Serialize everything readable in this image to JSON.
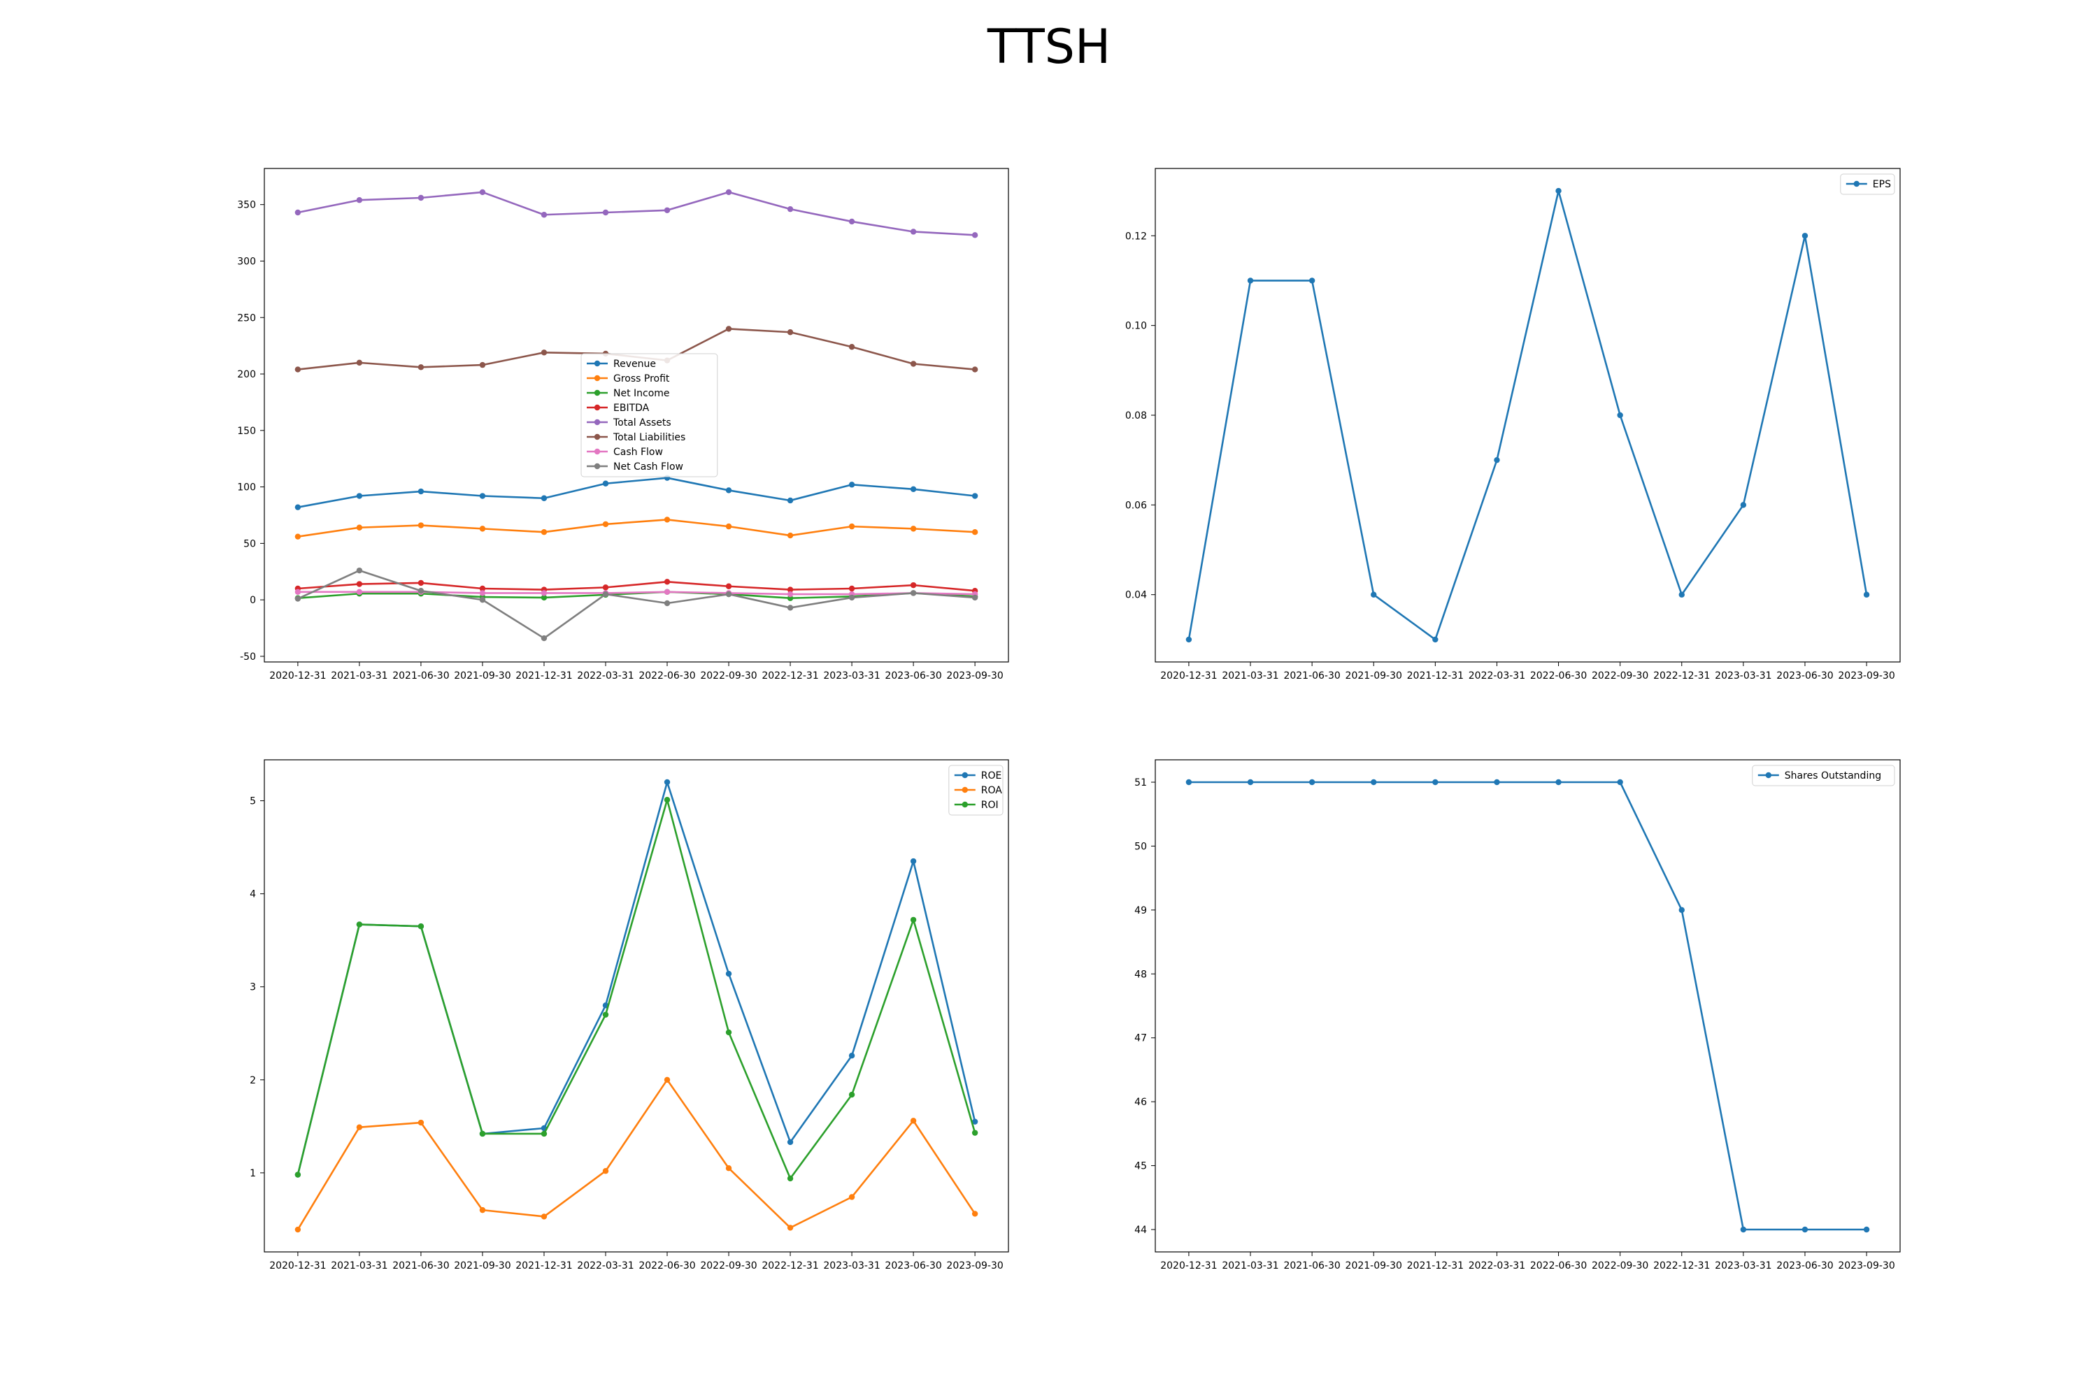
{
  "title": "TTSH",
  "colors": {
    "blue": "#1f77b4",
    "orange": "#ff7f0e",
    "green": "#2ca02c",
    "red": "#d62728",
    "purple": "#9467bd",
    "brown": "#8c564b",
    "pink": "#e377c2",
    "gray": "#7f7f7f"
  },
  "chart_data": [
    {
      "type": "line",
      "categories": [
        "2020-12-31",
        "2021-03-31",
        "2021-06-30",
        "2021-09-30",
        "2021-12-31",
        "2022-03-31",
        "2022-06-30",
        "2022-09-30",
        "2022-12-31",
        "2023-03-31",
        "2023-06-30",
        "2023-09-30"
      ],
      "ylim": [
        -55,
        382
      ],
      "yticks": [
        -50,
        0,
        50,
        100,
        150,
        200,
        250,
        300,
        350
      ],
      "legend": "center",
      "series": [
        {
          "name": "Revenue",
          "color": "#1f77b4",
          "values": [
            82,
            92,
            96,
            92,
            90,
            103,
            108,
            97,
            88,
            102,
            98,
            92
          ]
        },
        {
          "name": "Gross Profit",
          "color": "#ff7f0e",
          "values": [
            56,
            64,
            66,
            63,
            60,
            67,
            71,
            65,
            57,
            65,
            63,
            60
          ]
        },
        {
          "name": "Net Income",
          "color": "#2ca02c",
          "values": [
            1.5,
            5.5,
            5.5,
            2.5,
            2.0,
            4.5,
            7.0,
            5.0,
            1.5,
            3.0,
            6.0,
            3.0
          ]
        },
        {
          "name": "EBITDA",
          "color": "#d62728",
          "values": [
            10,
            14,
            15,
            10,
            9,
            11,
            16,
            12,
            9,
            10,
            13,
            8
          ]
        },
        {
          "name": "Total Assets",
          "color": "#9467bd",
          "values": [
            343,
            354,
            356,
            361,
            341,
            343,
            345,
            361,
            346,
            335,
            326,
            323
          ]
        },
        {
          "name": "Total Liabilities",
          "color": "#8c564b",
          "values": [
            204,
            210,
            206,
            208,
            219,
            218,
            212,
            240,
            237,
            224,
            209,
            204
          ]
        },
        {
          "name": "Cash Flow",
          "color": "#e377c2",
          "values": [
            7,
            7,
            7,
            6,
            6,
            6,
            7,
            6,
            5,
            5,
            6,
            5
          ]
        },
        {
          "name": "Net Cash Flow",
          "color": "#7f7f7f",
          "values": [
            1,
            26,
            8,
            0,
            -34,
            5,
            -3,
            5,
            -7,
            2,
            6,
            2
          ]
        }
      ]
    },
    {
      "type": "line",
      "categories": [
        "2020-12-31",
        "2021-03-31",
        "2021-06-30",
        "2021-09-30",
        "2021-12-31",
        "2022-03-31",
        "2022-06-30",
        "2022-09-30",
        "2022-12-31",
        "2023-03-31",
        "2023-06-30",
        "2023-09-30"
      ],
      "ylim": [
        0.025,
        0.135
      ],
      "yticks": [
        0.04,
        0.06,
        0.08,
        0.1,
        0.12
      ],
      "ytick_labels": [
        "0.04",
        "0.06",
        "0.08",
        "0.10",
        "0.12"
      ],
      "legend": "top-right",
      "series": [
        {
          "name": "EPS",
          "color": "#1f77b4",
          "values": [
            0.03,
            0.11,
            0.11,
            0.04,
            0.03,
            0.07,
            0.13,
            0.08,
            0.04,
            0.06,
            0.12,
            0.04
          ]
        }
      ]
    },
    {
      "type": "line",
      "categories": [
        "2020-12-31",
        "2021-03-31",
        "2021-06-30",
        "2021-09-30",
        "2021-12-31",
        "2022-03-31",
        "2022-06-30",
        "2022-09-30",
        "2022-12-31",
        "2023-03-31",
        "2023-06-30",
        "2023-09-30"
      ],
      "ylim": [
        0.15,
        5.44
      ],
      "yticks": [
        1,
        2,
        3,
        4,
        5
      ],
      "legend": "top-right",
      "series": [
        {
          "name": "ROE",
          "color": "#1f77b4",
          "values": [
            0.98,
            3.67,
            3.65,
            1.42,
            1.48,
            2.8,
            5.2,
            3.14,
            1.33,
            2.26,
            4.35,
            1.55
          ]
        },
        {
          "name": "ROA",
          "color": "#ff7f0e",
          "values": [
            0.39,
            1.49,
            1.54,
            0.6,
            0.53,
            1.02,
            2.0,
            1.05,
            0.41,
            0.74,
            1.56,
            0.56
          ]
        },
        {
          "name": "ROI",
          "color": "#2ca02c",
          "values": [
            0.98,
            3.67,
            3.65,
            1.42,
            1.42,
            2.7,
            5.01,
            2.51,
            0.94,
            1.84,
            3.72,
            1.43
          ]
        }
      ]
    },
    {
      "type": "line",
      "categories": [
        "2020-12-31",
        "2021-03-31",
        "2021-06-30",
        "2021-09-30",
        "2021-12-31",
        "2022-03-31",
        "2022-06-30",
        "2022-09-30",
        "2022-12-31",
        "2023-03-31",
        "2023-06-30",
        "2023-09-30"
      ],
      "ylim": [
        43.65,
        51.35
      ],
      "yticks": [
        44,
        45,
        46,
        47,
        48,
        49,
        50,
        51
      ],
      "legend": "top-right",
      "series": [
        {
          "name": "Shares Outstanding",
          "color": "#1f77b4",
          "values": [
            51,
            51,
            51,
            51,
            51,
            51,
            51,
            51,
            49,
            44,
            44,
            44
          ]
        }
      ]
    }
  ]
}
